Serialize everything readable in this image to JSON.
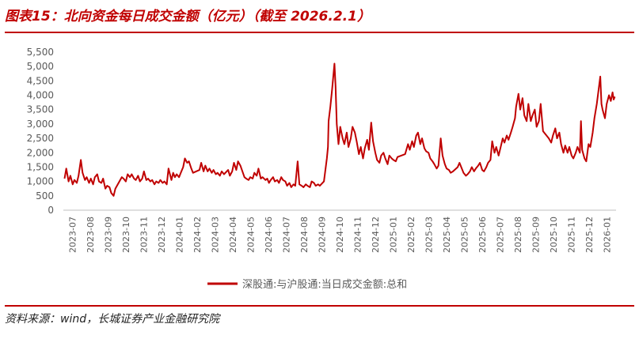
{
  "header": {
    "title": "图表15：北向资金每日成交金额（亿元）（截至 2026.2.1）"
  },
  "footer": {
    "source": "资料来源：wind，长城证券产业金融研究院"
  },
  "colors": {
    "accent": "#c00000",
    "series": "#c00000",
    "axis": "#bfbfbf",
    "text": "#595959"
  },
  "chart_data": {
    "type": "line",
    "title": "",
    "xlabel": "",
    "ylabel": "",
    "ylim": [
      0,
      5500
    ],
    "yticks": [
      0,
      500,
      1000,
      1500,
      2000,
      2500,
      3000,
      3500,
      4000,
      4500,
      5000,
      5500
    ],
    "ytick_labels": [
      "0",
      "500",
      "1,000",
      "1,500",
      "2,000",
      "2,500",
      "3,000",
      "3,500",
      "4,000",
      "4,500",
      "5,000",
      "5,500"
    ],
    "xlim": [
      "2023-07-01",
      "2026-02-01"
    ],
    "xtick_labels": [
      "2023-07",
      "2023-08",
      "2023-09",
      "2023-10",
      "2023-11",
      "2023-12",
      "2024-01",
      "2024-02",
      "2024-03",
      "2024-04",
      "2024-05",
      "2024-06",
      "2024-07",
      "2024-08",
      "2024-09",
      "2024-10",
      "2024-11",
      "2024-12",
      "2025-01",
      "2025-02",
      "2025-03",
      "2025-04",
      "2025-05",
      "2025-06",
      "2025-07",
      "2025-08",
      "2025-09",
      "2025-10",
      "2025-11",
      "2025-12",
      "2026-01"
    ],
    "grid": false,
    "legend_position": "bottom",
    "series": [
      {
        "name": "深股通:与沪股通:当日成交金额:总和",
        "color": "#c00000",
        "points": [
          [
            "2023-07-03",
            1100
          ],
          [
            "2023-07-06",
            1450
          ],
          [
            "2023-07-10",
            1000
          ],
          [
            "2023-07-13",
            1200
          ],
          [
            "2023-07-17",
            900
          ],
          [
            "2023-07-20",
            1050
          ],
          [
            "2023-07-24",
            950
          ],
          [
            "2023-07-27",
            1200
          ],
          [
            "2023-07-31",
            1750
          ],
          [
            "2023-08-03",
            1300
          ],
          [
            "2023-08-07",
            1050
          ],
          [
            "2023-08-10",
            1150
          ],
          [
            "2023-08-14",
            950
          ],
          [
            "2023-08-17",
            1100
          ],
          [
            "2023-08-21",
            900
          ],
          [
            "2023-08-24",
            1150
          ],
          [
            "2023-08-28",
            1250
          ],
          [
            "2023-08-31",
            1000
          ],
          [
            "2023-09-04",
            950
          ],
          [
            "2023-09-07",
            1100
          ],
          [
            "2023-09-11",
            750
          ],
          [
            "2023-09-14",
            850
          ],
          [
            "2023-09-18",
            800
          ],
          [
            "2023-09-21",
            600
          ],
          [
            "2023-09-25",
            500
          ],
          [
            "2023-09-28",
            750
          ],
          [
            "2023-10-09",
            1150
          ],
          [
            "2023-10-12",
            1100
          ],
          [
            "2023-10-16",
            1000
          ],
          [
            "2023-10-19",
            1250
          ],
          [
            "2023-10-23",
            1150
          ],
          [
            "2023-10-26",
            1250
          ],
          [
            "2023-10-30",
            1100
          ],
          [
            "2023-11-02",
            1050
          ],
          [
            "2023-11-06",
            1200
          ],
          [
            "2023-11-09",
            1000
          ],
          [
            "2023-11-13",
            1100
          ],
          [
            "2023-11-16",
            1350
          ],
          [
            "2023-11-20",
            1050
          ],
          [
            "2023-11-23",
            1100
          ],
          [
            "2023-11-27",
            1000
          ],
          [
            "2023-11-30",
            1050
          ],
          [
            "2023-12-04",
            900
          ],
          [
            "2023-12-07",
            1000
          ],
          [
            "2023-12-11",
            950
          ],
          [
            "2023-12-14",
            1050
          ],
          [
            "2023-12-18",
            950
          ],
          [
            "2023-12-21",
            1000
          ],
          [
            "2023-12-25",
            900
          ],
          [
            "2023-12-28",
            1450
          ],
          [
            "2024-01-02",
            1050
          ],
          [
            "2024-01-05",
            1300
          ],
          [
            "2024-01-08",
            1150
          ],
          [
            "2024-01-11",
            1250
          ],
          [
            "2024-01-15",
            1150
          ],
          [
            "2024-01-18",
            1300
          ],
          [
            "2024-01-22",
            1500
          ],
          [
            "2024-01-25",
            1800
          ],
          [
            "2024-01-29",
            1650
          ],
          [
            "2024-02-01",
            1700
          ],
          [
            "2024-02-05",
            1450
          ],
          [
            "2024-02-08",
            1300
          ],
          [
            "2024-02-19",
            1400
          ],
          [
            "2024-02-22",
            1650
          ],
          [
            "2024-02-26",
            1350
          ],
          [
            "2024-02-29",
            1550
          ],
          [
            "2024-03-04",
            1350
          ],
          [
            "2024-03-07",
            1450
          ],
          [
            "2024-03-11",
            1300
          ],
          [
            "2024-03-14",
            1400
          ],
          [
            "2024-03-18",
            1250
          ],
          [
            "2024-03-21",
            1300
          ],
          [
            "2024-03-25",
            1200
          ],
          [
            "2024-03-28",
            1350
          ],
          [
            "2024-04-01",
            1250
          ],
          [
            "2024-04-08",
            1400
          ],
          [
            "2024-04-11",
            1200
          ],
          [
            "2024-04-15",
            1350
          ],
          [
            "2024-04-18",
            1650
          ],
          [
            "2024-04-22",
            1400
          ],
          [
            "2024-04-25",
            1700
          ],
          [
            "2024-04-29",
            1550
          ],
          [
            "2024-05-06",
            1150
          ],
          [
            "2024-05-09",
            1100
          ],
          [
            "2024-05-13",
            1050
          ],
          [
            "2024-05-16",
            1150
          ],
          [
            "2024-05-20",
            1100
          ],
          [
            "2024-05-23",
            1300
          ],
          [
            "2024-05-27",
            1200
          ],
          [
            "2024-05-30",
            1450
          ],
          [
            "2024-06-03",
            1100
          ],
          [
            "2024-06-06",
            1150
          ],
          [
            "2024-06-11",
            1050
          ],
          [
            "2024-06-14",
            1100
          ],
          [
            "2024-06-17",
            950
          ],
          [
            "2024-06-20",
            1050
          ],
          [
            "2024-06-24",
            1150
          ],
          [
            "2024-06-27",
            1000
          ],
          [
            "2024-07-01",
            1050
          ],
          [
            "2024-07-04",
            950
          ],
          [
            "2024-07-08",
            1150
          ],
          [
            "2024-07-11",
            1050
          ],
          [
            "2024-07-15",
            1000
          ],
          [
            "2024-07-18",
            850
          ],
          [
            "2024-07-22",
            950
          ],
          [
            "2024-07-25",
            800
          ],
          [
            "2024-07-29",
            900
          ],
          [
            "2024-08-01",
            850
          ],
          [
            "2024-08-05",
            1700
          ],
          [
            "2024-08-08",
            900
          ],
          [
            "2024-08-12",
            850
          ],
          [
            "2024-08-15",
            800
          ],
          [
            "2024-08-19",
            900
          ],
          [
            "2024-08-22",
            850
          ],
          [
            "2024-08-26",
            800
          ],
          [
            "2024-08-29",
            1000
          ],
          [
            "2024-09-02",
            950
          ],
          [
            "2024-09-05",
            850
          ],
          [
            "2024-09-09",
            900
          ],
          [
            "2024-09-12",
            850
          ],
          [
            "2024-09-19",
            1000
          ],
          [
            "2024-09-24",
            1800
          ],
          [
            "2024-09-26",
            2200
          ],
          [
            "2024-09-27",
            3100
          ],
          [
            "2024-09-30",
            3600
          ],
          [
            "2024-10-03",
            4200
          ],
          [
            "2024-10-07",
            5100
          ],
          [
            "2024-10-09",
            4300
          ],
          [
            "2024-10-11",
            3000
          ],
          [
            "2024-10-14",
            2300
          ],
          [
            "2024-10-17",
            2900
          ],
          [
            "2024-10-21",
            2500
          ],
          [
            "2024-10-24",
            2300
          ],
          [
            "2024-10-28",
            2700
          ],
          [
            "2024-10-31",
            2200
          ],
          [
            "2024-11-04",
            2500
          ],
          [
            "2024-11-07",
            2900
          ],
          [
            "2024-11-11",
            2700
          ],
          [
            "2024-11-14",
            2400
          ],
          [
            "2024-11-18",
            1950
          ],
          [
            "2024-11-21",
            2200
          ],
          [
            "2024-11-25",
            1800
          ],
          [
            "2024-11-28",
            2150
          ],
          [
            "2024-12-02",
            2450
          ],
          [
            "2024-12-05",
            2100
          ],
          [
            "2024-12-09",
            3050
          ],
          [
            "2024-12-12",
            2400
          ],
          [
            "2024-12-16",
            2000
          ],
          [
            "2024-12-19",
            1750
          ],
          [
            "2024-12-23",
            1650
          ],
          [
            "2024-12-26",
            1900
          ],
          [
            "2024-12-30",
            2000
          ],
          [
            "2025-01-02",
            1800
          ],
          [
            "2025-01-06",
            1600
          ],
          [
            "2025-01-09",
            1900
          ],
          [
            "2025-01-13",
            1800
          ],
          [
            "2025-01-16",
            1750
          ],
          [
            "2025-01-20",
            1700
          ],
          [
            "2025-01-23",
            1850
          ],
          [
            "2025-02-05",
            1950
          ],
          [
            "2025-02-10",
            2300
          ],
          [
            "2025-02-13",
            2100
          ],
          [
            "2025-02-17",
            2400
          ],
          [
            "2025-02-20",
            2200
          ],
          [
            "2025-02-24",
            2600
          ],
          [
            "2025-02-27",
            2700
          ],
          [
            "2025-03-03",
            2300
          ],
          [
            "2025-03-06",
            2500
          ],
          [
            "2025-03-10",
            2150
          ],
          [
            "2025-03-13",
            2050
          ],
          [
            "2025-03-17",
            2000
          ],
          [
            "2025-03-20",
            1800
          ],
          [
            "2025-03-24",
            1700
          ],
          [
            "2025-03-27",
            1600
          ],
          [
            "2025-03-31",
            1450
          ],
          [
            "2025-04-03",
            1550
          ],
          [
            "2025-04-07",
            2500
          ],
          [
            "2025-04-10",
            1900
          ],
          [
            "2025-04-14",
            1600
          ],
          [
            "2025-04-17",
            1450
          ],
          [
            "2025-04-21",
            1400
          ],
          [
            "2025-04-24",
            1300
          ],
          [
            "2025-04-28",
            1350
          ],
          [
            "2025-05-06",
            1500
          ],
          [
            "2025-05-09",
            1650
          ],
          [
            "2025-05-13",
            1450
          ],
          [
            "2025-05-16",
            1300
          ],
          [
            "2025-05-20",
            1200
          ],
          [
            "2025-05-23",
            1250
          ],
          [
            "2025-05-27",
            1350
          ],
          [
            "2025-05-30",
            1500
          ],
          [
            "2025-06-03",
            1350
          ],
          [
            "2025-06-06",
            1450
          ],
          [
            "2025-06-10",
            1550
          ],
          [
            "2025-06-13",
            1650
          ],
          [
            "2025-06-17",
            1400
          ],
          [
            "2025-06-20",
            1350
          ],
          [
            "2025-06-24",
            1500
          ],
          [
            "2025-06-27",
            1650
          ],
          [
            "2025-07-01",
            1750
          ],
          [
            "2025-07-04",
            2400
          ],
          [
            "2025-07-08",
            2000
          ],
          [
            "2025-07-11",
            2200
          ],
          [
            "2025-07-15",
            1900
          ],
          [
            "2025-07-18",
            2150
          ],
          [
            "2025-07-22",
            2500
          ],
          [
            "2025-07-25",
            2350
          ],
          [
            "2025-07-29",
            2600
          ],
          [
            "2025-08-01",
            2450
          ],
          [
            "2025-08-05",
            2700
          ],
          [
            "2025-08-08",
            2900
          ],
          [
            "2025-08-12",
            3200
          ],
          [
            "2025-08-14",
            3600
          ],
          [
            "2025-08-18",
            4050
          ],
          [
            "2025-08-21",
            3500
          ],
          [
            "2025-08-25",
            3900
          ],
          [
            "2025-08-28",
            3300
          ],
          [
            "2025-09-01",
            3100
          ],
          [
            "2025-09-04",
            3700
          ],
          [
            "2025-09-08",
            3100
          ],
          [
            "2025-09-11",
            3300
          ],
          [
            "2025-09-15",
            3500
          ],
          [
            "2025-09-18",
            2900
          ],
          [
            "2025-09-22",
            3100
          ],
          [
            "2025-09-25",
            3700
          ],
          [
            "2025-09-29",
            2750
          ],
          [
            "2025-10-09",
            2500
          ],
          [
            "2025-10-13",
            2350
          ],
          [
            "2025-10-16",
            2600
          ],
          [
            "2025-10-20",
            2850
          ],
          [
            "2025-10-23",
            2500
          ],
          [
            "2025-10-27",
            2700
          ],
          [
            "2025-10-30",
            2300
          ],
          [
            "2025-11-03",
            2000
          ],
          [
            "2025-11-06",
            2250
          ],
          [
            "2025-11-10",
            2000
          ],
          [
            "2025-11-13",
            2200
          ],
          [
            "2025-11-17",
            1900
          ],
          [
            "2025-11-20",
            1800
          ],
          [
            "2025-11-24",
            2000
          ],
          [
            "2025-11-27",
            2200
          ],
          [
            "2025-12-01",
            2000
          ],
          [
            "2025-12-03",
            3100
          ],
          [
            "2025-12-05",
            2100
          ],
          [
            "2025-12-09",
            1800
          ],
          [
            "2025-12-12",
            1700
          ],
          [
            "2025-12-16",
            2300
          ],
          [
            "2025-12-19",
            2200
          ],
          [
            "2025-12-23",
            2700
          ],
          [
            "2025-12-26",
            3200
          ],
          [
            "2025-12-30",
            3700
          ],
          [
            "2026-01-05",
            4650
          ],
          [
            "2026-01-07",
            3700
          ],
          [
            "2026-01-09",
            3500
          ],
          [
            "2026-01-13",
            3200
          ],
          [
            "2026-01-16",
            3700
          ],
          [
            "2026-01-20",
            4000
          ],
          [
            "2026-01-23",
            3800
          ],
          [
            "2026-01-26",
            4100
          ],
          [
            "2026-01-28",
            3850
          ],
          [
            "2026-01-30",
            3950
          ]
        ]
      }
    ]
  }
}
